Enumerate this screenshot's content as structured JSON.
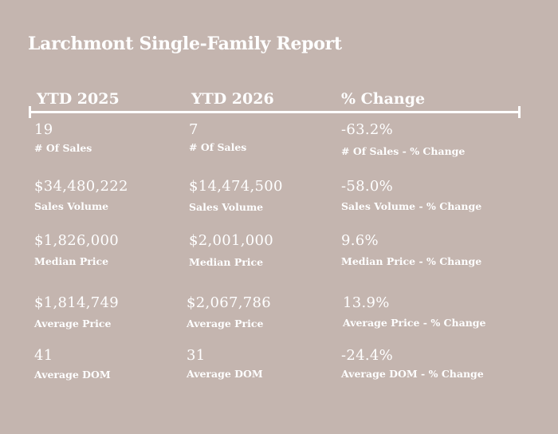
{
  "title": "Larchmont Single-Family Report",
  "columns": [
    "YTD 2025",
    "YTD 2026",
    "% Change"
  ],
  "rows": [
    {
      "c2025": {
        "value": "19",
        "label": "# Of Sales"
      },
      "c2026": {
        "value": "7",
        "label": "# Of Sales"
      },
      "change": {
        "value": "-63.2%",
        "label": "# Of Sales - % Change"
      }
    },
    {
      "c2025": {
        "value": "$34,480,222",
        "label": "Sales Volume"
      },
      "c2026": {
        "value": "$14,474,500",
        "label": "Sales Volume"
      },
      "change": {
        "value": "-58.0%",
        "label": "Sales Volume - % Change"
      }
    },
    {
      "c2025": {
        "value": "$1,826,000",
        "label": "Median Price"
      },
      "c2026": {
        "value": "$2,001,000",
        "label": "Median Price"
      },
      "change": {
        "value": "9.6%",
        "label": "Median Price - % Change"
      }
    },
    {
      "c2025": {
        "value": "$1,814,749",
        "label": "Average Price"
      },
      "c2026": {
        "value": "$2,067,786",
        "label": "Average Price"
      },
      "change": {
        "value": "13.9%",
        "label": "Average Price - % Change"
      }
    },
    {
      "c2025": {
        "value": "41",
        "label": "Average DOM"
      },
      "c2026": {
        "value": "31",
        "label": "Average DOM"
      },
      "change": {
        "value": "-24.4%",
        "label": "Average DOM - % Change"
      }
    }
  ]
}
